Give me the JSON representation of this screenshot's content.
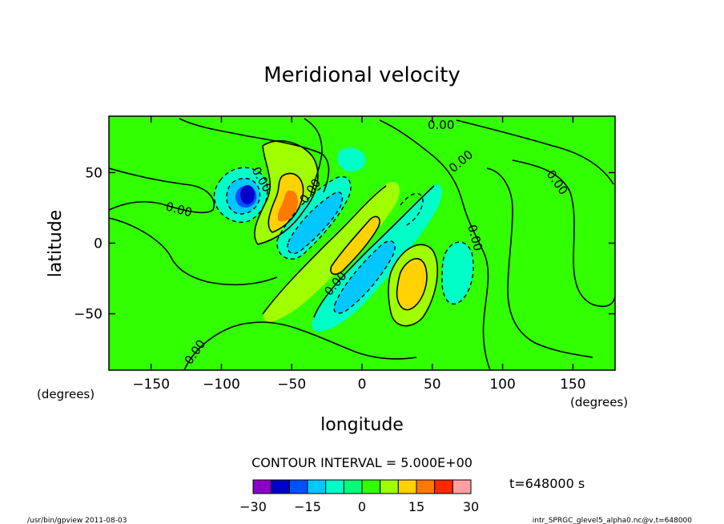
{
  "chart_data": {
    "type": "heatmap",
    "title": "Meridional velocity",
    "xlabel": "longitude",
    "ylabel": "latitude",
    "x_unit": "(degrees)",
    "y_unit": "(degrees)",
    "xlim": [
      -180,
      180
    ],
    "ylim": [
      -90,
      90
    ],
    "x_ticks": [
      -150,
      -100,
      -50,
      0,
      50,
      100,
      150
    ],
    "y_ticks": [
      -50,
      0,
      50
    ],
    "x_tick_labels": [
      "−150",
      "−100",
      "−50",
      "0",
      "50",
      "100",
      "150"
    ],
    "y_tick_labels": [
      "−50",
      "0",
      "50"
    ],
    "contour_interval_label": "CONTOUR INTERVAL = 5.000E+00",
    "contour_label": "0.00",
    "time_label": "t=648000 s",
    "colorbar": {
      "levels": [
        -30,
        -25,
        -20,
        -15,
        -10,
        -5,
        0,
        5,
        10,
        15,
        20,
        25,
        30
      ],
      "tick_values": [
        -30,
        -15,
        0,
        15,
        30
      ],
      "tick_labels": [
        "−30",
        "−15",
        "0",
        "15",
        "30"
      ],
      "colors": [
        "#8a00c8",
        "#0000c8",
        "#0050ff",
        "#00c8ff",
        "#00ffc8",
        "#00ff78",
        "#32ff00",
        "#a0ff00",
        "#ffd200",
        "#ff7800",
        "#ff2800",
        "#ff9fa0"
      ]
    },
    "features": [
      {
        "lon": -82,
        "lat": 36,
        "value": -22
      },
      {
        "lon": -50,
        "lat": 32,
        "value": 16
      },
      {
        "lon": -28,
        "lat": 12,
        "value": -12
      },
      {
        "lon": 10,
        "lat": 8,
        "value": 9
      },
      {
        "lon": 18,
        "lat": -15,
        "value": -11
      },
      {
        "lon": 38,
        "lat": -30,
        "value": 11
      },
      {
        "lon": 68,
        "lat": -20,
        "value": -6
      },
      {
        "lon": -15,
        "lat": 58,
        "value": -5
      },
      {
        "lon": -60,
        "lat": 58,
        "value": 6
      }
    ]
  },
  "footer": {
    "left": "/usr/bin/gpview  2011-08-03",
    "right": "intr_SPRGC_glevel5_alpha0.nc@v,t=648000"
  }
}
